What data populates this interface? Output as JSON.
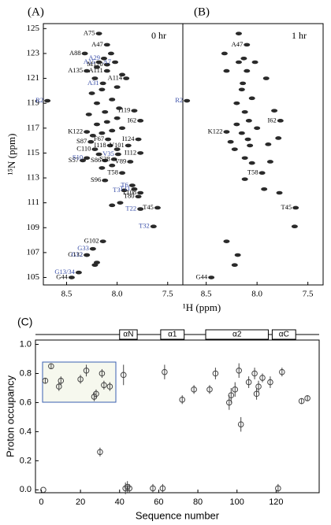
{
  "chart_data": [
    {
      "type": "spectrum",
      "title": "(A)",
      "annotation": "0 hr",
      "y_label": "¹⁵N (ppm)",
      "xlim": [
        8.73,
        7.35
      ],
      "ylim": [
        104.4,
        125.4
      ],
      "xticks": [
        8.5,
        {
          "value": 8,
          "label": "8.0"
        },
        7.5
      ],
      "yticks": [
        105,
        107,
        109,
        111,
        113,
        115,
        117,
        119,
        121,
        123,
        125
      ],
      "series": [
        {
          "color": "#2a2a2a",
          "label_color": "#000000",
          "labels": [
            "G44",
            "G132",
            "G102",
            "T45",
            "T80",
            "T108",
            "S96",
            "T58",
            "S57",
            "S86",
            "S28",
            "V89",
            "I112",
            "C110",
            "I118",
            "V101",
            "S87",
            "F67",
            "I124",
            "K122",
            "I62",
            "I119",
            "A114",
            "A135",
            "A111",
            "M120",
            "A88",
            "A47",
            "A75"
          ],
          "x": [
            8.45,
            8.3,
            8.14,
            7.6,
            7.79,
            7.77,
            8.12,
            7.95,
            8.34,
            8.12,
            8.03,
            7.87,
            7.77,
            8.22,
            8.07,
            7.89,
            8.26,
            8.09,
            7.79,
            8.3,
            7.77,
            7.83,
            7.91,
            8.3,
            8.1,
            8.1,
            8.32,
            8.1,
            8.18
          ],
          "values": [
            105.0,
            106.8,
            107.9,
            110.6,
            111.5,
            111.8,
            112.8,
            113.4,
            114.4,
            114.4,
            114.5,
            114.3,
            115.0,
            115.3,
            115.6,
            115.6,
            115.9,
            116.1,
            116.1,
            116.7,
            117.6,
            118.4,
            121.0,
            121.6,
            121.6,
            122.1,
            123.0,
            123.7,
            124.6
          ]
        },
        {
          "color": "#2a2a2a",
          "label_color": "#3a4fa8",
          "labels": [
            "G13/34",
            "G12",
            "G33",
            "T32",
            "T22",
            "T3",
            "T11",
            "T6",
            "S10",
            "V35",
            "R2",
            "A31",
            "A15",
            "A7",
            "A29"
          ],
          "x": [
            8.38,
            8.3,
            8.24,
            7.64,
            7.77,
            7.93,
            7.83,
            7.85,
            8.3,
            7.99,
            8.69,
            8.14,
            8.18,
            8.02,
            8.13
          ],
          "values": [
            105.4,
            106.8,
            107.3,
            109.1,
            110.5,
            112.0,
            112.1,
            112.4,
            114.6,
            114.9,
            119.2,
            120.6,
            122.3,
            122.3,
            122.6
          ]
        },
        {
          "color": "#2a2a2a",
          "x": [
            8.22,
            8.2,
            8.05,
            7.97,
            8.15,
            8.05,
            8.18,
            8.0,
            8.24,
            8.15,
            8.05,
            7.95,
            8.2,
            8.1,
            8.0,
            8.28,
            8.12,
            7.98,
            8.2,
            8.05,
            8.25,
            8.15,
            8.0,
            8.22,
            7.95,
            8.2,
            8.06
          ],
          "values": [
            106.0,
            106.2,
            110.8,
            111.0,
            113.8,
            114.0,
            114.9,
            115.3,
            116.4,
            116.6,
            116.8,
            117.0,
            117.3,
            117.5,
            117.8,
            118.1,
            118.3,
            118.6,
            119.0,
            119.3,
            119.8,
            120.1,
            120.3,
            121.0,
            121.3,
            121.9,
            123.0
          ]
        }
      ]
    },
    {
      "type": "spectrum",
      "title": "(B)",
      "annotation": "1 hr",
      "x_label": "¹H (ppm)",
      "xlim": [
        8.73,
        7.35
      ],
      "ylim": [
        104.4,
        125.4
      ],
      "xticks": [
        8.5,
        {
          "value": 8,
          "label": "8.0"
        },
        7.5
      ],
      "series": [
        {
          "color": "#2a2a2a",
          "label_color": "#000000",
          "labels": [
            "G44",
            "T45",
            "T58",
            "K122",
            "I62",
            "A47"
          ],
          "x": [
            8.45,
            7.62,
            7.95,
            8.3,
            7.77,
            8.1
          ],
          "values": [
            105.0,
            110.6,
            113.4,
            116.7,
            117.6,
            123.7
          ]
        },
        {
          "color": "#2a2a2a",
          "label_color": "#3a4fa8",
          "labels": [
            "R2"
          ],
          "x": [
            8.69
          ],
          "values": [
            119.2
          ]
        },
        {
          "color": "#2a2a2a",
          "x": [
            8.22,
            8.19,
            7.63,
            8.3,
            7.78,
            7.93,
            8.12,
            8.05,
            7.87,
            8.12,
            8.22,
            8.07,
            7.89,
            8.26,
            8.09,
            7.79,
            8.15,
            8.0,
            8.2,
            8.08,
            7.83,
            8.12,
            8.2,
            8.05,
            8.15,
            8.14,
            7.91,
            8.3,
            8.1,
            8.18,
            8.02,
            8.13,
            8.32,
            8.18
          ],
          "values": [
            106.0,
            106.8,
            109.1,
            107.9,
            111.8,
            112.1,
            112.9,
            114.2,
            114.3,
            114.6,
            115.3,
            115.6,
            115.7,
            115.9,
            116.1,
            116.2,
            116.6,
            117.0,
            117.3,
            117.6,
            118.4,
            118.3,
            119.0,
            119.4,
            120.1,
            120.6,
            121.0,
            121.6,
            121.6,
            122.3,
            122.3,
            122.6,
            123.0,
            124.6
          ]
        }
      ]
    },
    {
      "type": "scatter",
      "title": "(C)",
      "x_label": "Sequence number",
      "y_label": "Proton occupancy",
      "xlim": [
        -3,
        142
      ],
      "ylim": [
        -0.02,
        1.03
      ],
      "xticks": [
        0,
        20,
        40,
        60,
        80,
        100,
        120
      ],
      "yticks": [
        {
          "value": 0,
          "label": "0.0"
        },
        0.2,
        0.4,
        0.6,
        0.8,
        {
          "value": 1,
          "label": "1.0"
        }
      ],
      "secondary_structure": [
        {
          "label": "αN",
          "start": 40,
          "end": 49
        },
        {
          "label": "α1",
          "start": 61,
          "end": 73
        },
        {
          "label": "α2",
          "start": 84,
          "end": 116
        },
        {
          "label": "αC",
          "start": 118,
          "end": 130
        }
      ],
      "series": [
        {
          "color": "#444444",
          "x": [
            1,
            2,
            5,
            9,
            10,
            20,
            23,
            27,
            28,
            30,
            31,
            32,
            35,
            42,
            43,
            44,
            45,
            57,
            62,
            63,
            72,
            78,
            86,
            89,
            96,
            97,
            99,
            101,
            102,
            106,
            109,
            110,
            111,
            113,
            117,
            121,
            123,
            133,
            136
          ],
          "values": [
            0.0,
            0.75,
            0.85,
            0.71,
            0.75,
            0.76,
            0.82,
            0.64,
            0.66,
            0.26,
            0.8,
            0.72,
            0.71,
            0.79,
            0.01,
            0.02,
            0.01,
            0.01,
            0.01,
            0.81,
            0.62,
            0.69,
            0.69,
            0.8,
            0.6,
            0.65,
            0.69,
            0.82,
            0.45,
            0.74,
            0.8,
            0.66,
            0.71,
            0.77,
            0.74,
            0.01,
            0.81,
            0.61,
            0.63
          ],
          "errors": [
            0,
            0.02,
            0.02,
            0.03,
            0.03,
            0.03,
            0.04,
            0.03,
            0.03,
            0.03,
            0.03,
            0.03,
            0.03,
            0.07,
            0.04,
            0.04,
            0.03,
            0.03,
            0.03,
            0.05,
            0.03,
            0.03,
            0.03,
            0.04,
            0.05,
            0.05,
            0.05,
            0.05,
            0.05,
            0.04,
            0.04,
            0.04,
            0.04,
            0.03,
            0.04,
            0.03,
            0.03,
            0.02,
            0.02
          ]
        }
      ]
    }
  ]
}
